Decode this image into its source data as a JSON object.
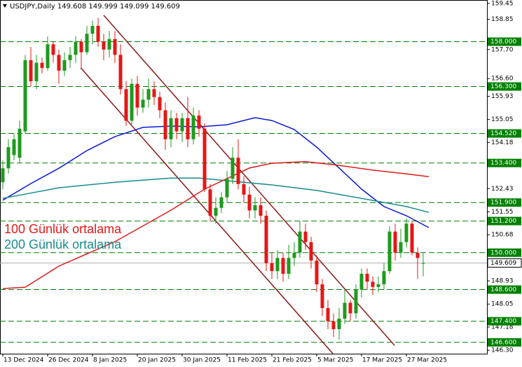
{
  "chart_data": {
    "type": "candlestick",
    "title": "USDJPY,Daily 149.608 149.999 149.099 149.609",
    "categories": [
      "13 Dec 2024",
      null,
      null,
      null,
      null,
      null,
      null,
      null,
      "26 Dec 2024",
      null,
      null,
      null,
      null,
      null,
      null,
      null,
      "8 Jan 2025",
      null,
      null,
      null,
      null,
      null,
      null,
      null,
      "20 Jan 2025",
      null,
      null,
      null,
      null,
      null,
      null,
      null,
      "30 Jan 2025",
      null,
      null,
      null,
      null,
      null,
      null,
      null,
      "11 Feb 2025",
      null,
      null,
      null,
      null,
      null,
      null,
      null,
      "21 Feb 2025",
      null,
      null,
      null,
      null,
      null,
      null,
      null,
      "5 Mar 2025",
      null,
      null,
      null,
      null,
      null,
      null,
      null,
      "17 Mar 2025",
      null,
      null,
      null,
      null,
      null,
      null,
      null,
      "27 Mar 2025",
      null,
      null,
      null
    ],
    "open": [
      152.67,
      153.2,
      153.7,
      153.6,
      154.6,
      157.3,
      156.5,
      157.2,
      157.0,
      157.9,
      157.5,
      156.9,
      157.3,
      157.5,
      158.0,
      157.6,
      158.3,
      158.6,
      158.0,
      157.7,
      158.1,
      157.5,
      156.2,
      155.0,
      156.4,
      155.5,
      155.8,
      156.2,
      155.9,
      155.4,
      154.3,
      155.1,
      154.6,
      155.1,
      154.3,
      155.2,
      154.7,
      152.4,
      151.4,
      151.7,
      152.1,
      152.8,
      153.6,
      152.6,
      152.2,
      151.6,
      151.8,
      151.4,
      149.6,
      149.3,
      149.8,
      149.2,
      149.8,
      150.0,
      150.8,
      150.4,
      149.7,
      148.8,
      147.9,
      147.4,
      147.1,
      147.5,
      148.1,
      147.7,
      148.6,
      149.2,
      148.9,
      148.7,
      148.8,
      149.3,
      150.8,
      150.0,
      150.4,
      151.1,
      150.0,
      149.608
    ],
    "high": [
      153.5,
      154.3,
      154.5,
      155.0,
      157.5,
      157.8,
      157.5,
      157.4,
      158.2,
      158.0,
      157.7,
      157.6,
      157.8,
      158.2,
      158.1,
      158.6,
      158.8,
      158.9,
      158.3,
      158.4,
      158.4,
      157.9,
      156.5,
      156.6,
      156.7,
      156.2,
      156.6,
      156.5,
      156.1,
      155.7,
      155.4,
      155.3,
      155.3,
      155.9,
      155.5,
      155.4,
      154.9,
      152.6,
      152.1,
      152.3,
      153.1,
      154.0,
      154.3,
      152.9,
      152.5,
      152.1,
      152.1,
      151.6,
      150.0,
      150.1,
      150.0,
      150.3,
      150.4,
      151.2,
      151.1,
      150.6,
      149.9,
      149.0,
      148.2,
      147.7,
      147.9,
      148.6,
      148.2,
      148.8,
      149.4,
      149.4,
      149.1,
      149.1,
      149.6,
      151.0,
      151.1,
      150.9,
      151.3,
      151.2,
      150.2,
      149.999
    ],
    "low": [
      152.4,
      153.0,
      153.5,
      153.4,
      154.5,
      156.3,
      156.2,
      156.8,
      156.9,
      157.2,
      156.4,
      156.7,
      157.0,
      157.2,
      157.0,
      157.5,
      157.9,
      157.8,
      157.3,
      157.4,
      157.2,
      156.0,
      154.8,
      154.8,
      155.2,
      155.3,
      155.5,
      155.6,
      155.1,
      153.9,
      154.0,
      154.3,
      154.2,
      154.0,
      154.1,
      154.4,
      152.3,
      151.2,
      151.1,
      151.5,
      151.9,
      152.6,
      152.4,
      151.9,
      151.3,
      151.3,
      151.1,
      149.3,
      149.0,
      149.0,
      148.9,
      149.0,
      149.5,
      149.8,
      150.1,
      149.4,
      148.5,
      147.6,
      147.1,
      146.8,
      146.7,
      147.3,
      147.4,
      147.5,
      148.3,
      148.6,
      148.4,
      148.5,
      148.6,
      149.2,
      149.7,
      149.8,
      150.2,
      149.9,
      149.0,
      149.099
    ],
    "close": [
      153.2,
      154.0,
      154.3,
      154.7,
      157.3,
      156.5,
      157.2,
      157.0,
      157.9,
      157.5,
      156.9,
      157.3,
      157.5,
      158.0,
      157.6,
      158.3,
      158.6,
      158.0,
      157.7,
      158.1,
      157.5,
      156.2,
      155.0,
      156.4,
      155.5,
      155.8,
      156.2,
      155.9,
      155.4,
      154.3,
      155.1,
      154.6,
      155.1,
      154.3,
      155.2,
      154.7,
      152.4,
      151.4,
      151.7,
      152.1,
      152.8,
      153.6,
      152.6,
      152.2,
      151.6,
      151.8,
      151.4,
      149.6,
      149.3,
      149.8,
      149.2,
      149.8,
      150.0,
      150.8,
      150.4,
      149.7,
      148.8,
      147.9,
      147.4,
      147.1,
      147.5,
      148.1,
      147.7,
      148.6,
      149.2,
      148.9,
      148.7,
      148.8,
      149.3,
      150.8,
      150.0,
      150.4,
      151.1,
      150.0,
      149.8,
      149.609
    ],
    "up_color": "#1e9a1e",
    "down_color": "#e51717",
    "ylim": [
      146.17,
      159.58
    ],
    "yticks": [
      159.45,
      158.85,
      {
        "value": 157.7,
        "label": "157.70"
      },
      {
        "value": 156.6,
        "label": "156.60"
      },
      155.93,
      155.05,
      154.18,
      152.43,
      151.55,
      150.68,
      148.93,
      148.05,
      147.18,
      {
        "value": 146.3,
        "label": "146.30"
      }
    ],
    "levels": [
      {
        "value": 158.0,
        "label": "158.000"
      },
      {
        "value": 156.3,
        "label": "156.300"
      },
      {
        "value": 154.52,
        "label": "154.520"
      },
      {
        "value": 153.4,
        "label": "153.400"
      },
      {
        "value": 151.9,
        "label": "151.900"
      },
      {
        "value": 151.2,
        "label": "151.200"
      },
      {
        "value": 150.0,
        "label": "150.000"
      },
      {
        "value": 148.6,
        "label": "148.600"
      },
      {
        "value": 147.4,
        "label": "147.400"
      },
      {
        "value": 146.6,
        "label": "146.600"
      }
    ],
    "level_color": "#008000",
    "last_price": 149.609,
    "series": [
      {
        "color": "#0a1ad0",
        "x": [
          0,
          5,
          10,
          15,
          20,
          25,
          30,
          35,
          40,
          45,
          48,
          52,
          56,
          60,
          64,
          68,
          72,
          76
        ],
        "values": [
          151.99,
          152.62,
          153.2,
          153.87,
          154.4,
          154.75,
          154.8,
          154.77,
          154.85,
          155.12,
          155.01,
          154.67,
          154.0,
          153.21,
          152.41,
          151.75,
          151.4,
          150.95
        ]
      },
      {
        "name": "200 Günlük ortalama",
        "color": "#1a8c8c",
        "x": [
          0,
          10,
          20,
          30,
          35,
          40,
          48,
          56,
          64,
          72,
          76
        ],
        "values": [
          152.06,
          152.46,
          152.67,
          152.83,
          152.83,
          152.73,
          152.57,
          152.36,
          152.06,
          151.75,
          151.53
        ]
      },
      {
        "name": "100 Günlük ortalama",
        "color": "#e01a1a",
        "x": [
          0,
          4,
          10,
          20,
          30,
          36,
          40,
          44,
          48,
          54,
          60,
          66,
          72,
          76
        ],
        "values": [
          148.64,
          148.69,
          149.49,
          150.42,
          151.61,
          152.41,
          152.81,
          153.21,
          153.39,
          153.45,
          153.31,
          153.13,
          152.99,
          152.88
        ]
      }
    ],
    "trendlines": [
      {
        "color": "#8b1a1a",
        "x": [
          18,
          69.9
        ],
        "values": [
          159.0,
          146.48
        ]
      },
      {
        "color": "#8b1a1a",
        "x": [
          13.9,
          58.9
        ],
        "values": [
          157.01,
          146.17
        ]
      }
    ]
  }
}
